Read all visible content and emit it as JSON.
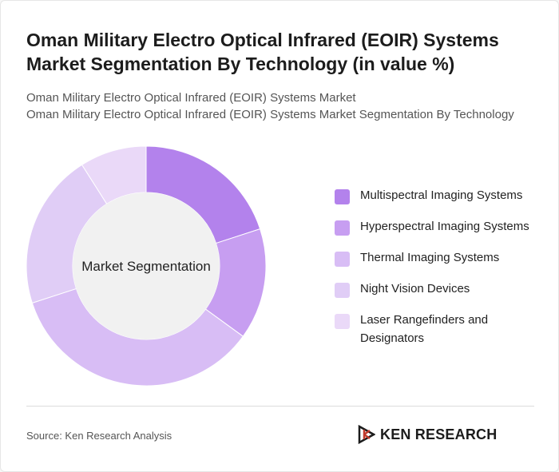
{
  "header": {
    "title": "Oman Military Electro Optical Infrared (EOIR) Systems Market Segmentation By Technology (in value %)",
    "subtitle_line1": "Oman Military Electro Optical Infrared (EOIR) Systems Market",
    "subtitle_line2": "Oman Military Electro Optical Infrared (EOIR) Systems Market Segmentation By Technology"
  },
  "chart_data": {
    "type": "pie",
    "center_label": "Market Segmentation",
    "categories": [
      "Multispectral Imaging Systems",
      "Hyperspectral Imaging Systems",
      "Thermal Imaging Systems",
      "Night Vision Devices",
      "Laser Rangefinders and Designators"
    ],
    "values": [
      20,
      15,
      35,
      21,
      9
    ],
    "colors": [
      "#b382ec",
      "#c79ef1",
      "#d8bdf5",
      "#e0cdf6",
      "#ead9f8"
    ],
    "legend_position": "right"
  },
  "footer": {
    "source": "Source: Ken Research Analysis",
    "logo_text": "KEN RESEARCH"
  }
}
